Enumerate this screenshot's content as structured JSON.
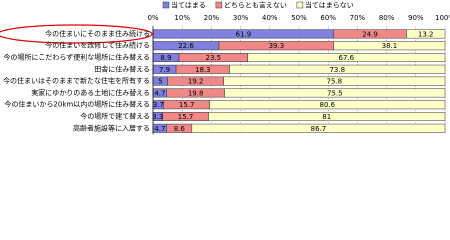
{
  "chart_data": {
    "type": "stacked-bar-horizontal",
    "categories": [
      "今の住まいにそのまま住み続ける",
      "今の住まいを改修して住み続ける",
      "今の場所にこだわらず便利な場所に住み替える",
      "田舎に住み替える",
      "今の住まいはそのままで新たな住宅を所有する",
      "実家にゆかりのある土地に住み替える",
      "今の住まいから20km以内の場所に住み替える",
      "今の場所で建て替える",
      "高齢者施設等に入居する"
    ],
    "series": [
      {
        "name": "当てはまる",
        "color": "#8080e0",
        "values": [
          61.9,
          22.6,
          8.9,
          7.9,
          5.0,
          4.7,
          3.7,
          3.3,
          4.7
        ]
      },
      {
        "name": "どちらとも言えない",
        "color": "#f08888",
        "values": [
          24.9,
          39.3,
          23.5,
          18.3,
          19.2,
          19.8,
          15.7,
          15.7,
          8.6
        ]
      },
      {
        "name": "当てはまらない",
        "color": "#ffffc8",
        "values": [
          13.2,
          38.1,
          67.6,
          73.8,
          75.8,
          75.5,
          80.6,
          81.0,
          86.7
        ]
      }
    ],
    "xlim": [
      0,
      100
    ],
    "xticks": [
      {
        "value": 0,
        "label": "0%"
      },
      {
        "value": 10,
        "label": "10%"
      },
      {
        "value": 20,
        "label": "20%"
      },
      {
        "value": 30,
        "label": "30%"
      },
      {
        "value": 40,
        "label": "40%"
      },
      {
        "value": 50,
        "label": "50%"
      },
      {
        "value": 60,
        "label": "60%"
      },
      {
        "value": 70,
        "label": "70%"
      },
      {
        "value": 80,
        "label": "80%"
      },
      {
        "value": 90,
        "label": "90%"
      },
      {
        "value": 100,
        "label": "100%"
      }
    ],
    "grid": true,
    "legend": "top"
  }
}
